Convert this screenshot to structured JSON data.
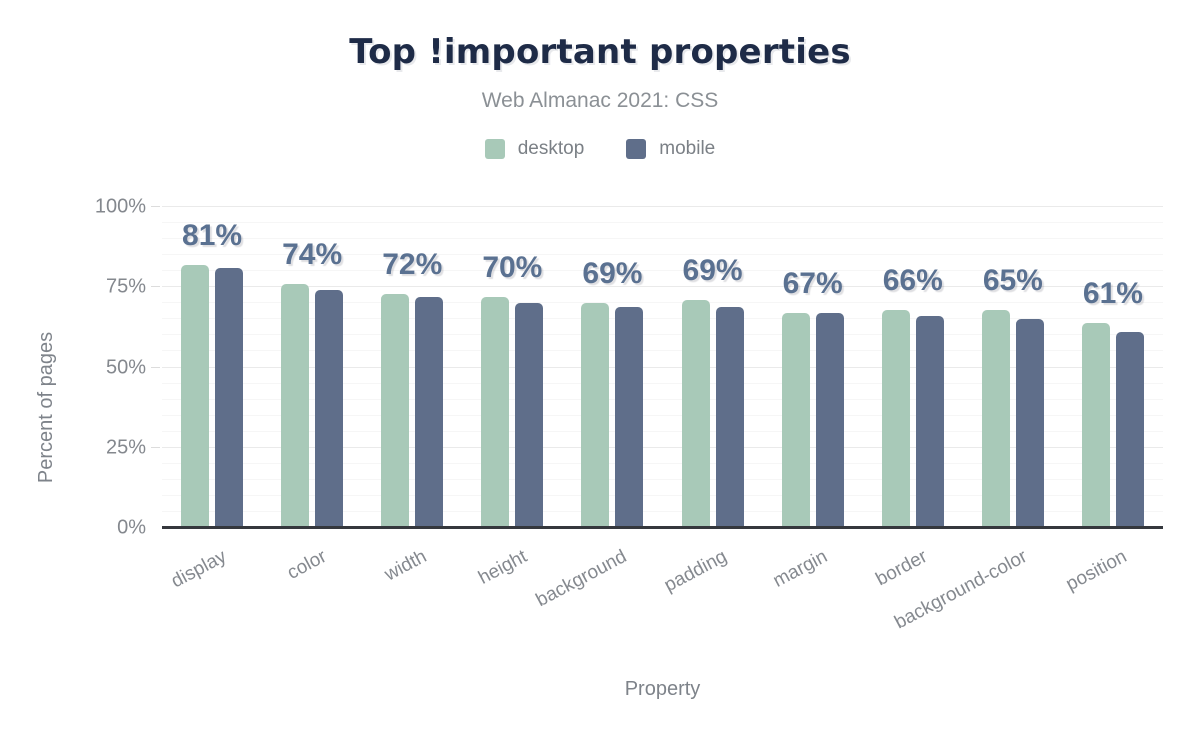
{
  "chart_data": {
    "type": "bar",
    "title": "Top !important properties",
    "subtitle": "Web Almanac 2021: CSS",
    "xlabel": "Property",
    "ylabel": "Percent of pages",
    "categories": [
      "display",
      "color",
      "width",
      "height",
      "background",
      "padding",
      "margin",
      "border",
      "background-color",
      "position"
    ],
    "series": [
      {
        "name": "desktop",
        "color": "#a8c9b8",
        "values": [
          82,
          76,
          73,
          72,
          70,
          71,
          67,
          68,
          68,
          64
        ]
      },
      {
        "name": "mobile",
        "color": "#5f6e8a",
        "values": [
          81,
          74,
          72,
          70,
          69,
          69,
          67,
          66,
          65,
          61
        ]
      }
    ],
    "bar_labels": [
      "81%",
      "74%",
      "72%",
      "70%",
      "69%",
      "69%",
      "67%",
      "66%",
      "65%",
      "61%"
    ],
    "bar_labels_source": "mobile",
    "ylim": [
      0,
      100
    ],
    "y_ticks": [
      {
        "value": 0,
        "label": "0%"
      },
      {
        "value": 25,
        "label": "25%"
      },
      {
        "value": 50,
        "label": "50%"
      },
      {
        "value": 75,
        "label": "75%"
      },
      {
        "value": 100,
        "label": "100%"
      }
    ],
    "grid": {
      "on": true,
      "minor_step": 5,
      "major_step": 25,
      "minor_color": "#f6f6f6",
      "major_color": "#eaeaea"
    },
    "legend_position": "top",
    "colors": {
      "title": "#1e2b47",
      "subtitle": "#8b9095",
      "value_label": "#5a7191",
      "axis_text": "#84888e",
      "baseline": "#35383d",
      "background": "#ffffff"
    }
  }
}
